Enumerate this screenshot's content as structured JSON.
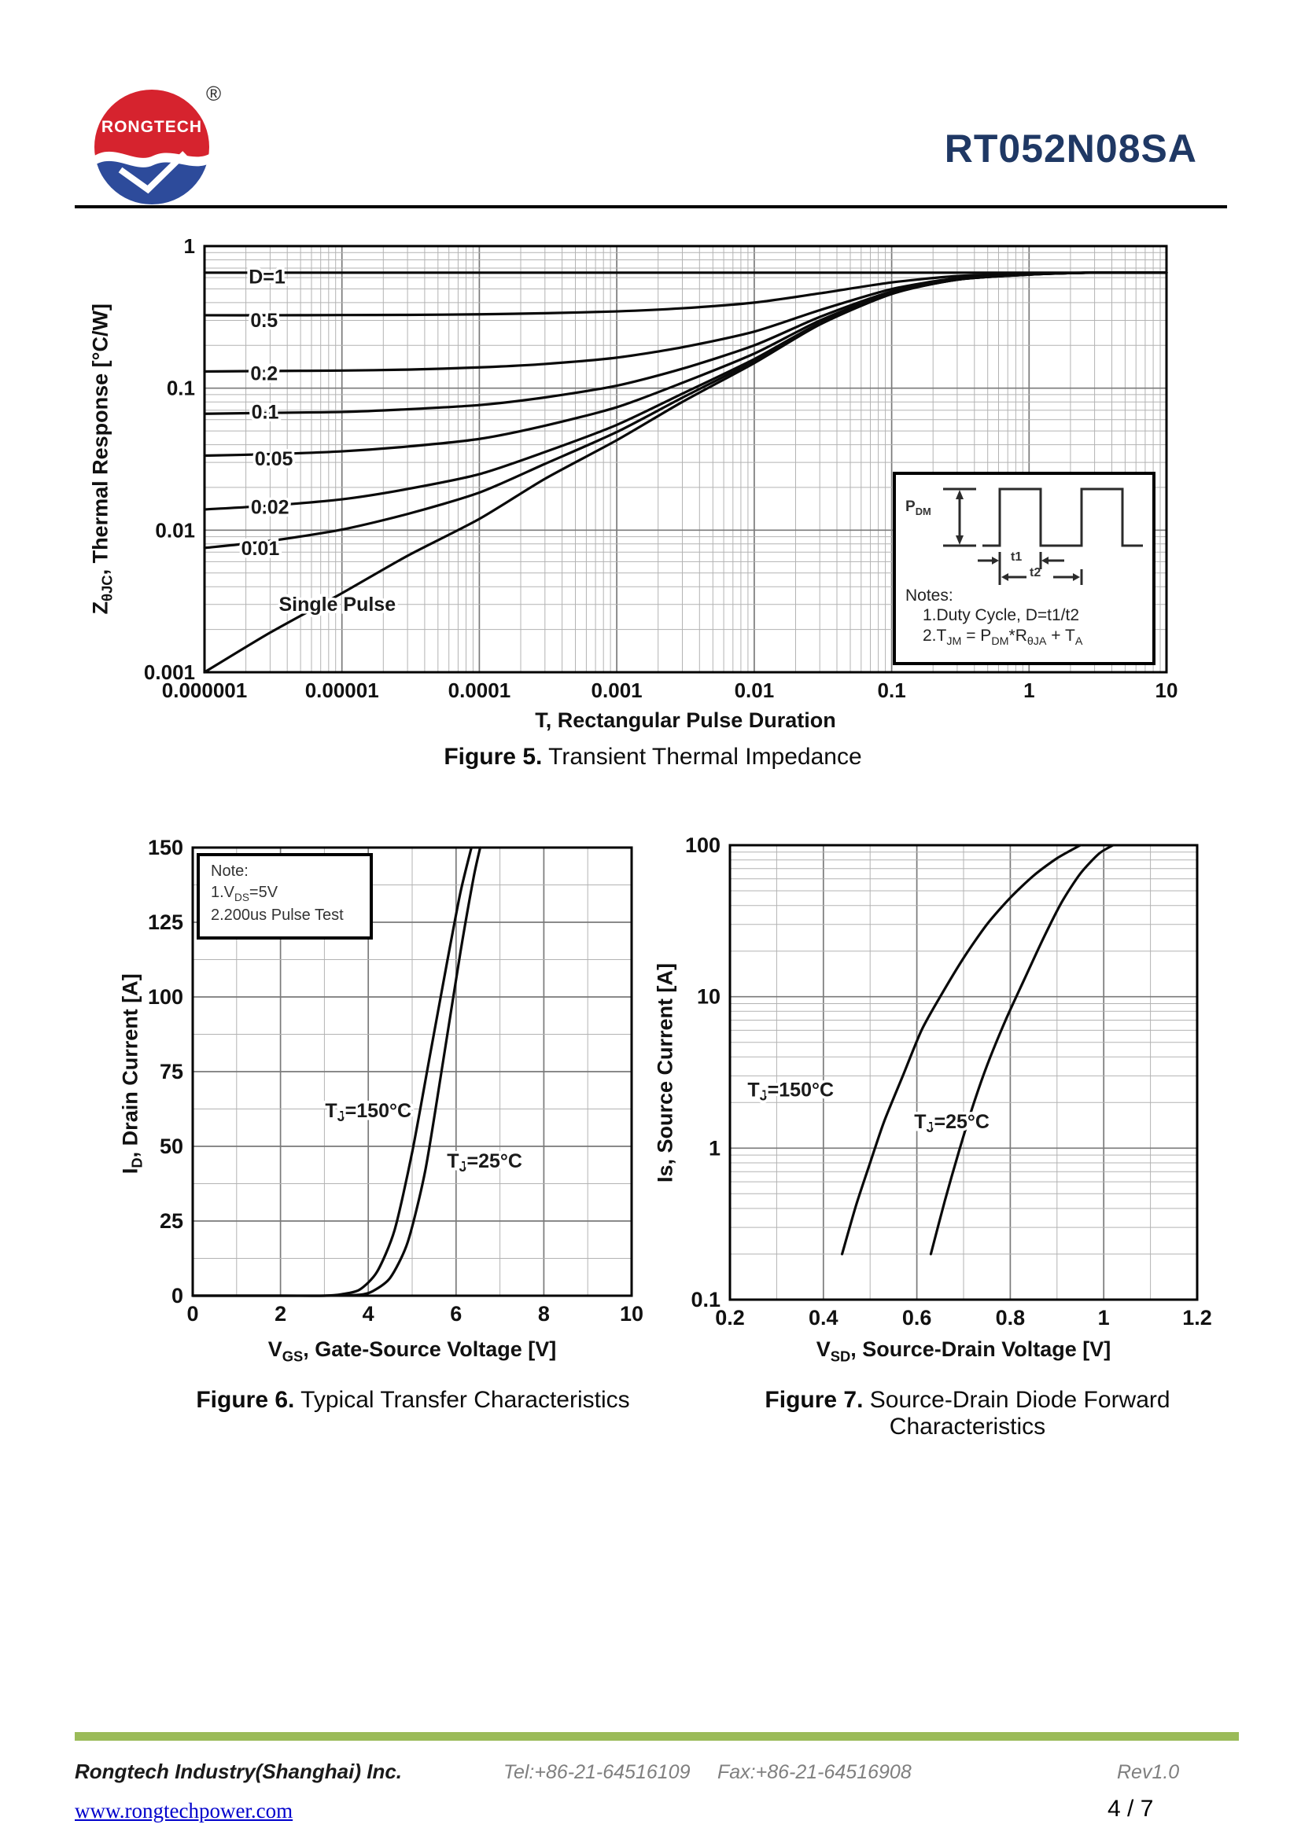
{
  "header": {
    "logo_brand": "RONGTECH",
    "registered_mark": "®",
    "part_number": "RT052N08SA",
    "title_color": "#1f3864",
    "logo_colors": {
      "red": "#d6232e",
      "blue": "#2d4b9b"
    }
  },
  "figures": {
    "fig5": {
      "caption_bold": "Figure 5.",
      "caption_rest": " Transient Thermal Impedance",
      "y_title": [
        {
          "t": "Z"
        },
        {
          "s": "θJC"
        },
        {
          "t": ", Thermal Response [°C/W]"
        }
      ],
      "x_title": [
        {
          "t": "T, Rectangular Pulse Duration"
        }
      ],
      "inset": {
        "pdm_label": [
          {
            "t": "P"
          },
          {
            "s": "DM"
          }
        ],
        "t1_label": "t1",
        "t2_label": "t2",
        "notes_title": "Notes:",
        "note1": [
          {
            "t": "1.Duty  Cycle, D=t1/t2"
          }
        ],
        "note2": [
          {
            "t": "2.T"
          },
          {
            "s": "JM"
          },
          {
            "t": " = P"
          },
          {
            "s": "DM"
          },
          {
            "t": "*R"
          },
          {
            "s": "θJA"
          },
          {
            "t": " + T"
          },
          {
            "s": "A"
          }
        ]
      }
    },
    "fig6": {
      "caption_bold": "Figure 6.",
      "caption_rest": " Typical Transfer Characteristics",
      "y_title": [
        {
          "t": "I"
        },
        {
          "s": "D"
        },
        {
          "t": ", Drain Current [A]"
        }
      ],
      "x_title": [
        {
          "t": "V"
        },
        {
          "s": "GS"
        },
        {
          "t": ", Gate-Source Voltage [V]"
        }
      ],
      "note": {
        "title": "Note:",
        "line1": [
          {
            "t": "1.V"
          },
          {
            "s": "DS"
          },
          {
            "t": "=5V"
          }
        ],
        "line2": [
          {
            "t": "2.200us Pulse Test"
          }
        ]
      }
    },
    "fig7": {
      "caption_bold": "Figure 7.",
      "caption_rest": " Source-Drain Diode Forward Characteristics",
      "y_title": [
        {
          "t": "Is, Source Current [A]"
        }
      ],
      "x_title": [
        {
          "t": "V"
        },
        {
          "s": "SD"
        },
        {
          "t": ", Source-Drain Voltage [V]"
        }
      ]
    }
  },
  "chart_data": [
    {
      "id": "fig5",
      "type": "line",
      "title": "Transient Thermal Impedance",
      "x_scale": "log",
      "y_scale": "log",
      "x_min": 1e-06,
      "x_max": 10,
      "y_min": 0.001,
      "y_max": 1,
      "x_label": "T, Rectangular Pulse Duration",
      "y_label": "ZθJC, Thermal Response [°C/W]",
      "x_ticks": [
        "0.000001",
        "0.00001",
        "0.0001",
        "0.001",
        "0.01",
        "0.1",
        "1",
        "10"
      ],
      "y_ticks": [
        "1",
        "0.1",
        "0.01",
        "0.001"
      ],
      "x": [
        1e-06,
        3e-06,
        1e-05,
        3e-05,
        0.0001,
        0.0003,
        0.001,
        0.003,
        0.01,
        0.03,
        0.1,
        0.3,
        1,
        3,
        10
      ],
      "series": [
        {
          "name": "D=1",
          "values": [
            0.65,
            0.65,
            0.65,
            0.65,
            0.65,
            0.65,
            0.65,
            0.65,
            0.65,
            0.65,
            0.65,
            0.65,
            0.65,
            0.65,
            0.65
          ]
        },
        {
          "name": "0.5",
          "values": [
            0.326,
            0.326,
            0.327,
            0.328,
            0.331,
            0.337,
            0.347,
            0.365,
            0.4,
            0.465,
            0.555,
            0.615,
            0.64,
            0.65,
            0.65
          ]
        },
        {
          "name": "0.2",
          "values": [
            0.131,
            0.132,
            0.133,
            0.135,
            0.14,
            0.148,
            0.164,
            0.194,
            0.25,
            0.354,
            0.498,
            0.594,
            0.634,
            0.65,
            0.65
          ]
        },
        {
          "name": "0.1",
          "values": [
            0.066,
            0.067,
            0.068,
            0.071,
            0.076,
            0.086,
            0.104,
            0.137,
            0.2,
            0.317,
            0.479,
            0.587,
            0.632,
            0.65,
            0.65
          ]
        },
        {
          "name": "0.05",
          "values": [
            0.0335,
            0.0343,
            0.0359,
            0.0388,
            0.0439,
            0.0544,
            0.0734,
            0.109,
            0.175,
            0.299,
            0.47,
            0.584,
            0.631,
            0.65,
            0.65
          ]
        },
        {
          "name": "0.02",
          "values": [
            0.014,
            0.0149,
            0.0165,
            0.0195,
            0.0248,
            0.0355,
            0.0551,
            0.0914,
            0.16,
            0.287,
            0.464,
            0.581,
            0.63,
            0.65,
            0.65
          ]
        },
        {
          "name": "0.01",
          "values": [
            0.0075,
            0.0084,
            0.0101,
            0.013,
            0.0184,
            0.0293,
            0.0491,
            0.0857,
            0.155,
            0.284,
            0.462,
            0.581,
            0.63,
            0.65,
            0.65
          ]
        },
        {
          "name": "Single Pulse",
          "values": [
            0.001,
            0.0019,
            0.0036,
            0.0066,
            0.012,
            0.023,
            0.043,
            0.08,
            0.15,
            0.28,
            0.46,
            0.58,
            0.63,
            0.65,
            0.65
          ]
        }
      ],
      "labels": [
        {
          "segs": [
            {
              "t": "D=1"
            }
          ],
          "fx": 0.065,
          "fy": 0.088
        },
        {
          "segs": [
            {
              "t": "0.5"
            }
          ],
          "fx": 0.062,
          "fy": 0.19
        },
        {
          "segs": [
            {
              "t": "0.2"
            }
          ],
          "fx": 0.062,
          "fy": 0.315
        },
        {
          "segs": [
            {
              "t": "0.1"
            }
          ],
          "fx": 0.063,
          "fy": 0.405
        },
        {
          "segs": [
            {
              "t": "0.05"
            }
          ],
          "fx": 0.072,
          "fy": 0.515
        },
        {
          "segs": [
            {
              "t": "0.02"
            }
          ],
          "fx": 0.068,
          "fy": 0.628
        },
        {
          "segs": [
            {
              "t": "0.01"
            }
          ],
          "fx": 0.058,
          "fy": 0.725
        },
        {
          "segs": [
            {
              "t": "Single Pulse"
            }
          ],
          "fx": 0.138,
          "fy": 0.856
        }
      ]
    },
    {
      "id": "fig6",
      "type": "line",
      "title": "Typical Transfer Characteristics",
      "x_scale": "linear",
      "y_scale": "linear",
      "x_min": 0,
      "x_max": 10,
      "y_min": 0,
      "y_max": 150,
      "x_minor": 1,
      "x_major": 2,
      "y_minor": 12.5,
      "y_major": 25,
      "x_label": "VGS, Gate-Source Voltage [V]",
      "y_label": "ID, Drain Current [A]",
      "x_ticks": [
        "0",
        "2",
        "4",
        "6",
        "8",
        "10"
      ],
      "y_ticks": [
        "0",
        "25",
        "50",
        "75",
        "100",
        "125",
        "150"
      ],
      "note": "1.VDS=5V  2.200us Pulse Test",
      "series": [
        {
          "name": "TJ=150°C",
          "points": [
            [
              0,
              0
            ],
            [
              2,
              0
            ],
            [
              3,
              0
            ],
            [
              3.4,
              0.5
            ],
            [
              3.8,
              2
            ],
            [
              4.2,
              8
            ],
            [
              4.6,
              22
            ],
            [
              5.0,
              48
            ],
            [
              5.4,
              80
            ],
            [
              5.8,
              112
            ],
            [
              6.1,
              135
            ],
            [
              6.35,
              150
            ]
          ]
        },
        {
          "name": "TJ=25°C",
          "points": [
            [
              0,
              0
            ],
            [
              2,
              0
            ],
            [
              3,
              0
            ],
            [
              3.8,
              0.3
            ],
            [
              4.1,
              1.5
            ],
            [
              4.5,
              6
            ],
            [
              4.9,
              18
            ],
            [
              5.3,
              42
            ],
            [
              5.7,
              78
            ],
            [
              6.1,
              115
            ],
            [
              6.4,
              140
            ],
            [
              6.55,
              150
            ]
          ]
        }
      ],
      "labels": [
        {
          "segs": [
            {
              "t": "T"
            },
            {
              "s": "J"
            },
            {
              "t": "=150°C"
            }
          ],
          "fx": 0.4,
          "fy": 0.602
        },
        {
          "segs": [
            {
              "t": "T"
            },
            {
              "s": "J"
            },
            {
              "t": "=25°C"
            }
          ],
          "fx": 0.665,
          "fy": 0.714
        }
      ]
    },
    {
      "id": "fig7",
      "type": "line",
      "title": "Source-Drain Diode Forward Characteristics",
      "x_scale": "linear",
      "y_scale": "log",
      "x_min": 0.2,
      "x_max": 1.2,
      "y_min": 0.1,
      "y_max": 100,
      "x_minor": 0.1,
      "x_major": 0.2,
      "x_label": "VSD, Source-Drain Voltage [V]",
      "y_label": "Is, Source Current [A]",
      "x_ticks": [
        "0.2",
        "0.4",
        "0.6",
        "0.8",
        "1",
        "1.2"
      ],
      "y_ticks": [
        "100",
        "10",
        "1",
        "0.1"
      ],
      "series": [
        {
          "name": "TJ=150°C",
          "points": [
            [
              0.44,
              0.2
            ],
            [
              0.47,
              0.42
            ],
            [
              0.5,
              0.8
            ],
            [
              0.53,
              1.5
            ],
            [
              0.57,
              3
            ],
            [
              0.61,
              6
            ],
            [
              0.65,
              10
            ],
            [
              0.7,
              18
            ],
            [
              0.75,
              30
            ],
            [
              0.8,
              45
            ],
            [
              0.85,
              63
            ],
            [
              0.9,
              82
            ],
            [
              0.95,
              100
            ]
          ]
        },
        {
          "name": "TJ=25°C",
          "points": [
            [
              0.63,
              0.2
            ],
            [
              0.66,
              0.45
            ],
            [
              0.69,
              0.95
            ],
            [
              0.72,
              1.9
            ],
            [
              0.75,
              3.5
            ],
            [
              0.79,
              7
            ],
            [
              0.83,
              13
            ],
            [
              0.87,
              24
            ],
            [
              0.91,
              42
            ],
            [
              0.95,
              65
            ],
            [
              0.99,
              88
            ],
            [
              1.02,
              100
            ]
          ]
        }
      ],
      "labels": [
        {
          "segs": [
            {
              "t": "T"
            },
            {
              "s": "J"
            },
            {
              "t": "=150°C"
            }
          ],
          "fx": 0.13,
          "fy": 0.553
        },
        {
          "segs": [
            {
              "t": "T"
            },
            {
              "s": "J"
            },
            {
              "t": "=25°C"
            }
          ],
          "fx": 0.475,
          "fy": 0.623
        }
      ]
    }
  ],
  "footer": {
    "bar_color": "#9bbb59",
    "company": "Rongtech Industry(Shanghai) Inc.",
    "tel": "Tel:+86-21-64516109",
    "fax": "Fax:+86-21-64516908",
    "rev": "Rev1.0",
    "website": "www.rongtechpower.com",
    "page_indicator": "4 / 7"
  }
}
